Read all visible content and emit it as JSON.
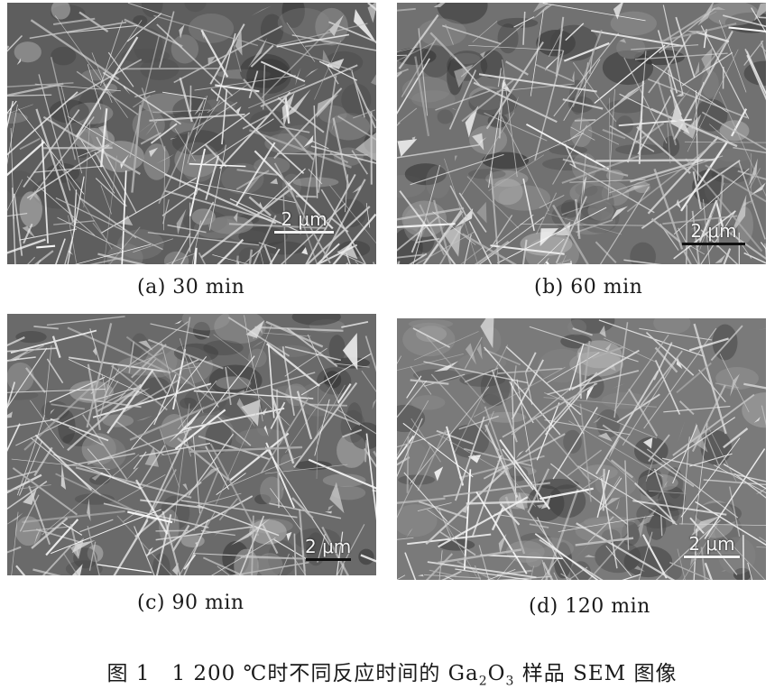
{
  "panels": [
    {
      "id": "a",
      "caption": "(a) 30 min",
      "scale_label": "2 μm",
      "base": "#5e5e5e",
      "fg": "#d6d6d6",
      "seed": 11
    },
    {
      "id": "b",
      "caption": "(b) 60 min",
      "scale_label": "2 μm",
      "base": "#717171",
      "fg": "#e8e8e8",
      "seed": 23
    },
    {
      "id": "c",
      "caption": "(c) 90 min",
      "scale_label": "2 μm",
      "base": "#6a6a6a",
      "fg": "#ececec",
      "seed": 37
    },
    {
      "id": "d",
      "caption": "(d) 120 min",
      "scale_label": "2 μm",
      "base": "#7a7a7a",
      "fg": "#e4e4e4",
      "seed": 53
    }
  ],
  "figure_caption": {
    "prefix": "图 1　1 200 ℃时不同反应时间的 Ga",
    "sub1": "2",
    "mid": "O",
    "sub2": "3",
    "suffix": " 样品 SEM 图像"
  }
}
